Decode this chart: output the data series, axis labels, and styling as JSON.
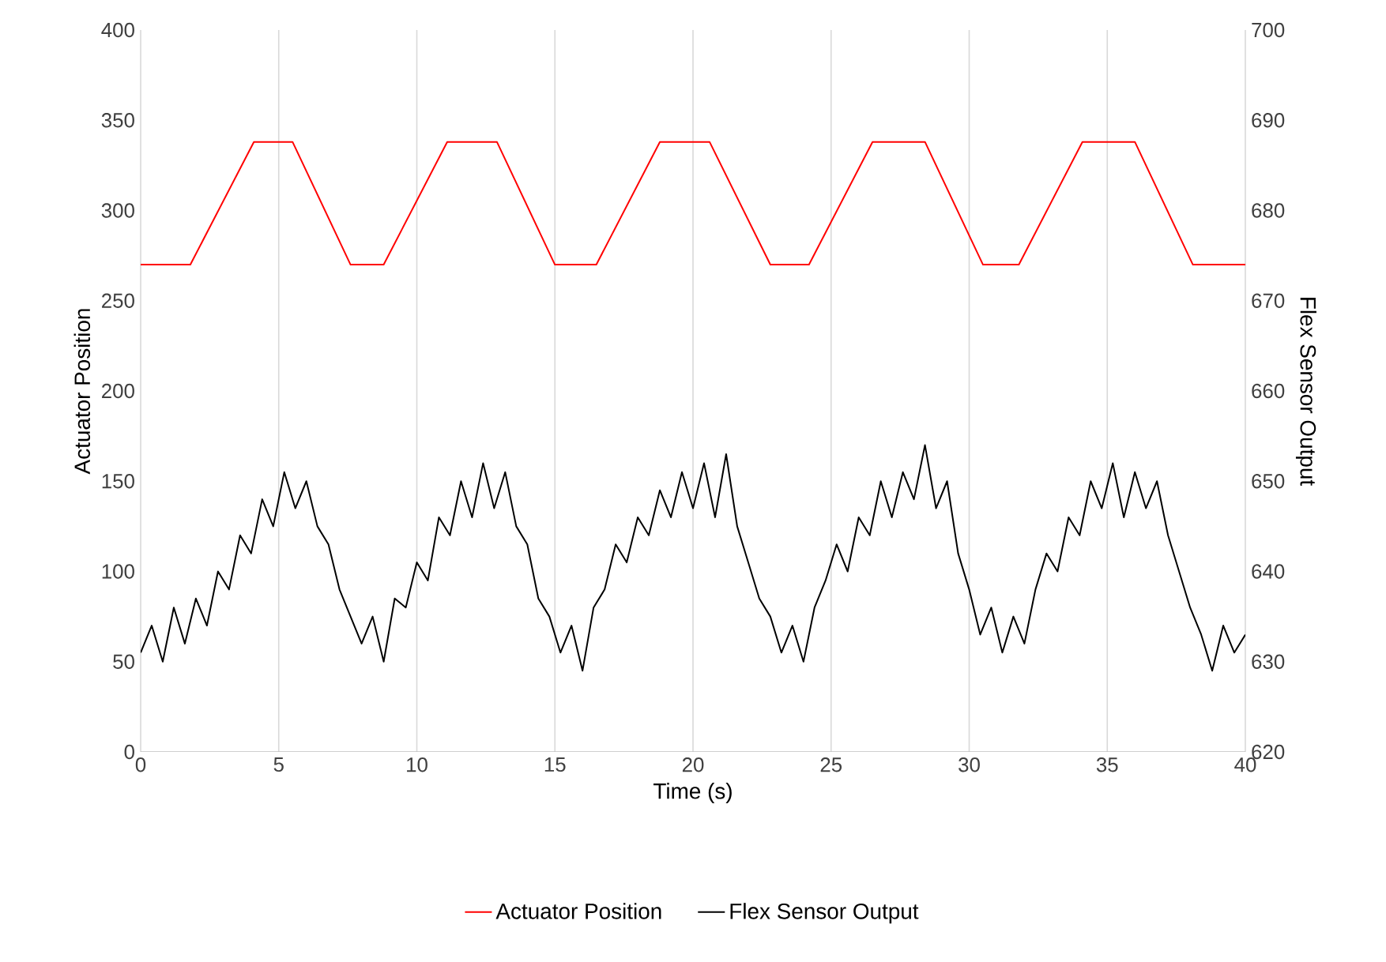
{
  "chart_data": {
    "type": "line",
    "xlabel": "Time (s)",
    "ylabel": "Actuator Position",
    "y2label": "Flex Sensor Output",
    "xlim": [
      0,
      40
    ],
    "xticks": [
      0,
      5,
      10,
      15,
      20,
      25,
      30,
      35,
      40
    ],
    "ylim": [
      0,
      400
    ],
    "yticks": [
      0,
      50,
      100,
      150,
      200,
      250,
      300,
      350,
      400
    ],
    "y2lim": [
      620,
      700
    ],
    "y2ticks": [
      620,
      630,
      640,
      650,
      660,
      670,
      680,
      690,
      700
    ],
    "grid": "x",
    "legend": "bottom",
    "marker": "none",
    "line_style": "solid",
    "series": [
      {
        "name": "Actuator Position",
        "color": "#ff0000",
        "x": [
          0,
          1.8,
          4.1,
          5.5,
          7.6,
          8.8,
          11.1,
          12.9,
          15,
          16.5,
          18.8,
          20.6,
          22.8,
          24.2,
          26.5,
          28.4,
          30.5,
          31.8,
          34.1,
          36,
          38.1,
          40
        ],
        "values": [
          270,
          270,
          338,
          338,
          270,
          270,
          338,
          338,
          270,
          270,
          338,
          338,
          270,
          270,
          338,
          338,
          270,
          270,
          338,
          338,
          270,
          270
        ]
      },
      {
        "name": "Flex Sensor Output",
        "color": "#000000",
        "axis": "y2",
        "x": [
          0,
          0.4,
          0.8,
          1.2,
          1.6,
          2.0,
          2.4,
          2.8,
          3.2,
          3.6,
          4.0,
          4.4,
          4.8,
          5.2,
          5.6,
          6.0,
          6.4,
          6.8,
          7.2,
          7.6,
          8.0,
          8.4,
          8.8,
          9.2,
          9.6,
          10.0,
          10.4,
          10.8,
          11.2,
          11.6,
          12.0,
          12.4,
          12.8,
          13.2,
          13.6,
          14.0,
          14.4,
          14.8,
          15.2,
          15.6,
          16.0,
          16.4,
          16.8,
          17.2,
          17.6,
          18.0,
          18.4,
          18.8,
          19.2,
          19.6,
          20.0,
          20.4,
          20.8,
          21.2,
          21.6,
          22.0,
          22.4,
          22.8,
          23.2,
          23.6,
          24.0,
          24.4,
          24.8,
          25.2,
          25.6,
          26.0,
          26.4,
          26.8,
          27.2,
          27.6,
          28.0,
          28.4,
          28.8,
          29.2,
          29.6,
          30.0,
          30.4,
          30.8,
          31.2,
          31.6,
          32.0,
          32.4,
          32.8,
          33.2,
          33.6,
          34.0,
          34.4,
          34.8,
          35.2,
          35.6,
          36.0,
          36.4,
          36.8,
          37.2,
          37.6,
          38.0,
          38.4,
          38.8,
          39.2,
          39.6,
          40.0
        ],
        "values": [
          631,
          634,
          630,
          636,
          632,
          637,
          634,
          640,
          638,
          644,
          642,
          648,
          645,
          651,
          647,
          650,
          645,
          643,
          638,
          635,
          632,
          635,
          630,
          637,
          636,
          641,
          639,
          646,
          644,
          650,
          646,
          652,
          647,
          651,
          645,
          643,
          637,
          635,
          631,
          634,
          629,
          636,
          638,
          643,
          641,
          646,
          644,
          649,
          646,
          651,
          647,
          652,
          646,
          653,
          645,
          641,
          637,
          635,
          631,
          634,
          630,
          636,
          639,
          643,
          640,
          646,
          644,
          650,
          646,
          651,
          648,
          654,
          647,
          650,
          642,
          638,
          633,
          636,
          631,
          635,
          632,
          638,
          642,
          640,
          646,
          644,
          650,
          647,
          652,
          646,
          651,
          647,
          650,
          644,
          640,
          636,
          633,
          629,
          634,
          631,
          633
        ]
      }
    ]
  }
}
